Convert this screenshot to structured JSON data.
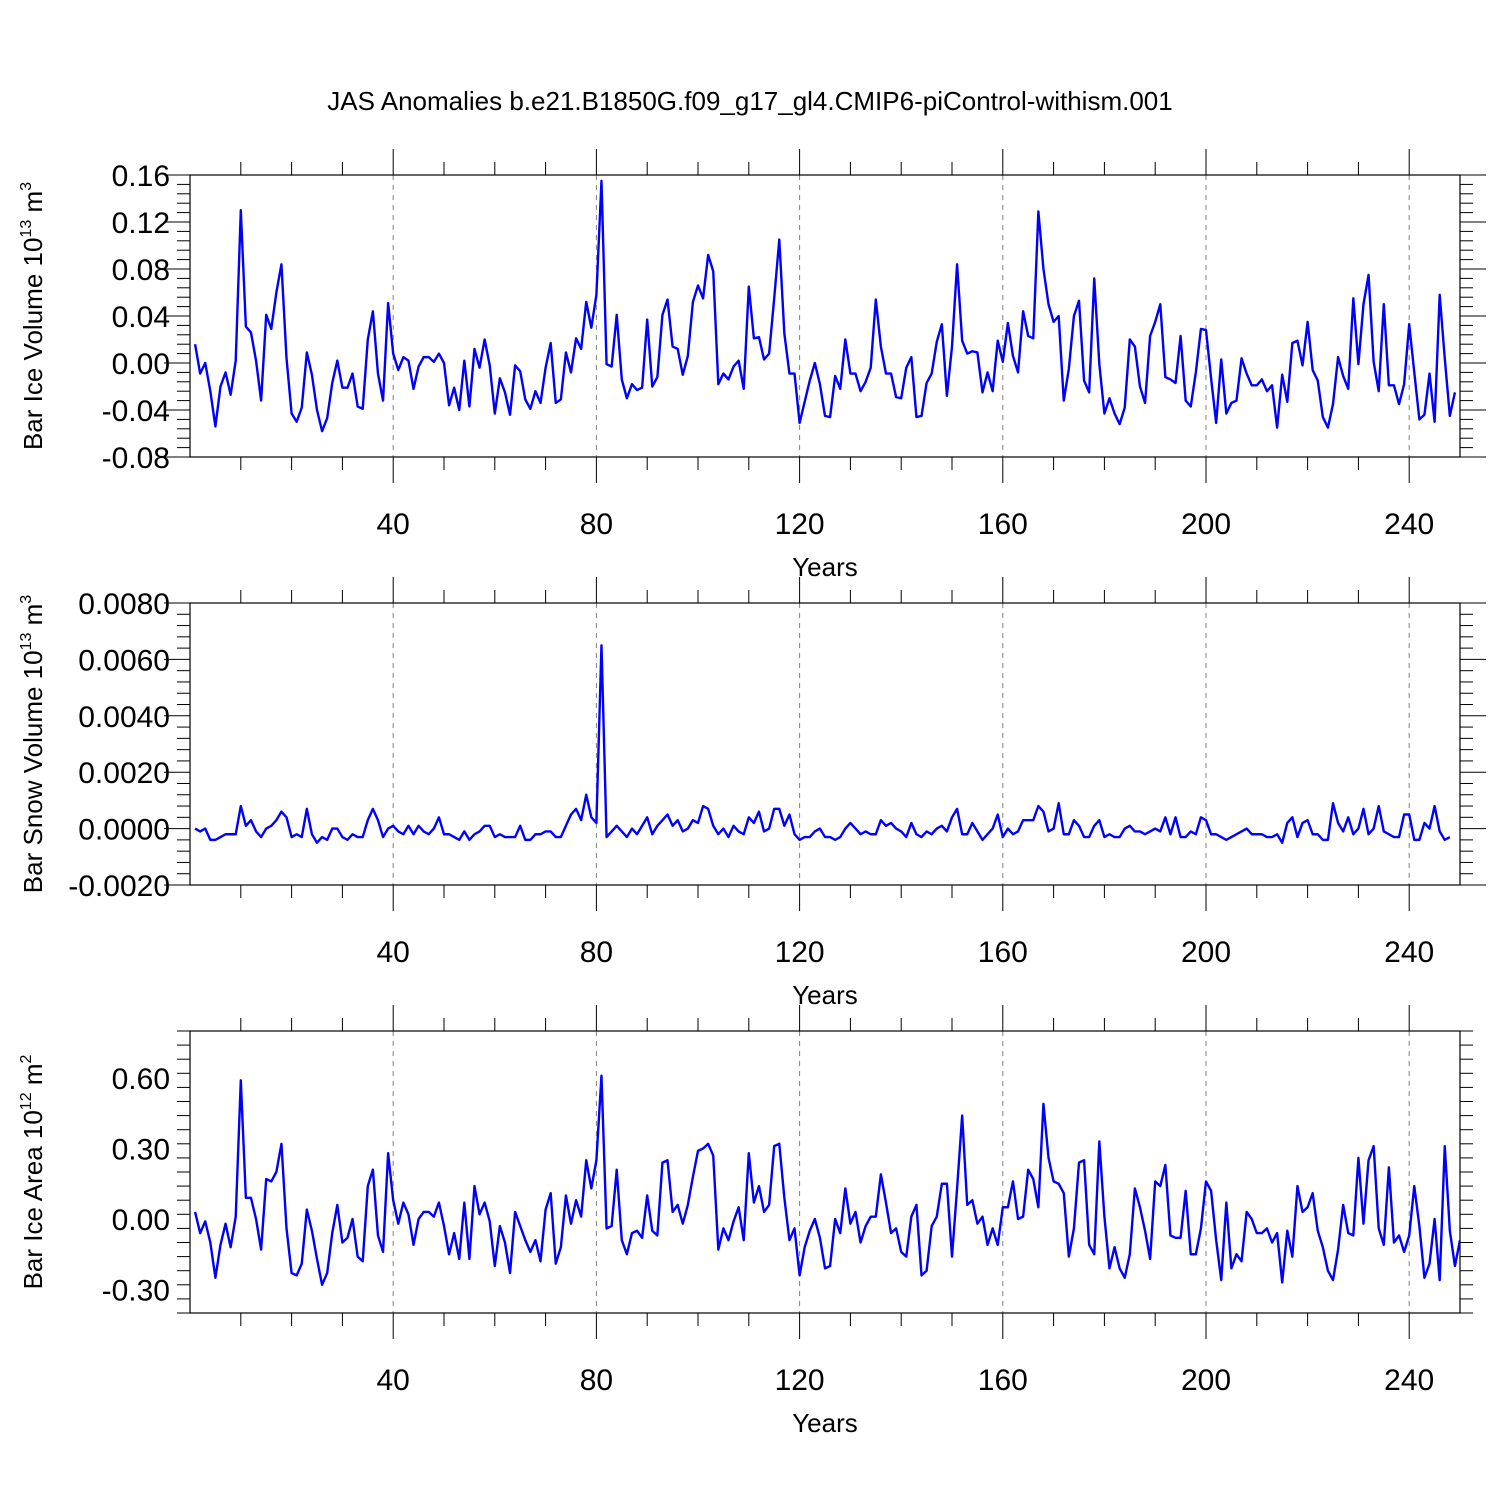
{
  "title": "JAS Anomalies b.e21.B1850G.f09_g17_gl4.CMIP6-piControl-withism.001",
  "colors": {
    "line": "#0000ff",
    "frame": "#000000",
    "grid": "#808080"
  },
  "chart_data": [
    {
      "type": "line",
      "xlabel": "Years",
      "ylabel": {
        "base": "Bar Ice Volume 10",
        "sup1": "13",
        "mid": " m",
        "sup2": "3"
      },
      "xlim": [
        0,
        250
      ],
      "ylim": [
        -0.08,
        0.16
      ],
      "xticks": [
        40,
        80,
        120,
        160,
        200,
        240
      ],
      "xtick_labels": [
        "40",
        "80",
        "120",
        "160",
        "200",
        "240"
      ],
      "yticks": [
        -0.08,
        -0.04,
        0.0,
        0.04,
        0.08,
        0.12,
        0.16
      ],
      "ytick_labels": [
        "-0.08",
        "-0.04",
        "0.00",
        "0.04",
        "0.08",
        "0.12",
        "0.16"
      ],
      "x_start": 1,
      "series": [
        {
          "values": [
            0.016,
            -0.009,
            0.0,
            -0.024,
            -0.054,
            -0.02,
            -0.008,
            -0.027,
            0.002,
            0.13,
            0.031,
            0.026,
            0.002,
            -0.032,
            0.041,
            0.029,
            0.06,
            0.084,
            0.004,
            -0.043,
            -0.05,
            -0.038,
            0.009,
            -0.01,
            -0.04,
            -0.058,
            -0.047,
            -0.017,
            0.002,
            -0.021,
            -0.021,
            -0.009,
            -0.037,
            -0.039,
            0.02,
            0.044,
            -0.009,
            -0.032,
            0.051,
            0.008,
            -0.006,
            0.005,
            0.002,
            -0.022,
            -0.003,
            0.005,
            0.005,
            0.001,
            0.008,
            0.0,
            -0.036,
            -0.021,
            -0.04,
            0.002,
            -0.037,
            0.012,
            -0.004,
            0.02,
            -0.002,
            -0.043,
            -0.013,
            -0.025,
            -0.044,
            -0.002,
            -0.007,
            -0.031,
            -0.039,
            -0.024,
            -0.034,
            -0.004,
            0.017,
            -0.034,
            -0.031,
            0.009,
            -0.008,
            0.021,
            0.012,
            0.052,
            0.03,
            0.058,
            0.155,
            -0.001,
            -0.003,
            0.041,
            -0.014,
            -0.03,
            -0.018,
            -0.023,
            -0.021,
            0.037,
            -0.02,
            -0.012,
            0.041,
            0.054,
            0.014,
            0.012,
            -0.01,
            0.006,
            0.052,
            0.066,
            0.055,
            0.092,
            0.078,
            -0.018,
            -0.009,
            -0.014,
            -0.003,
            0.002,
            -0.022,
            0.065,
            0.021,
            0.022,
            0.003,
            0.008,
            0.055,
            0.105,
            0.025,
            -0.009,
            -0.009,
            -0.051,
            -0.033,
            -0.015,
            0.0,
            -0.018,
            -0.045,
            -0.046,
            -0.011,
            -0.022,
            0.02,
            -0.009,
            -0.009,
            -0.024,
            -0.016,
            -0.004,
            0.054,
            0.014,
            -0.009,
            -0.009,
            -0.029,
            -0.03,
            -0.004,
            0.005,
            -0.046,
            -0.045,
            -0.017,
            -0.009,
            0.018,
            0.033,
            -0.028,
            0.014,
            0.084,
            0.019,
            0.008,
            0.01,
            0.009,
            -0.025,
            -0.008,
            -0.024,
            0.019,
            0.001,
            0.034,
            0.006,
            -0.008,
            0.044,
            0.023,
            0.021,
            0.129,
            0.08,
            0.05,
            0.035,
            0.04,
            -0.032,
            -0.005,
            0.04,
            0.053,
            -0.015,
            -0.025,
            0.072,
            -0.001,
            -0.043,
            -0.03,
            -0.043,
            -0.052,
            -0.038,
            0.02,
            0.014,
            -0.02,
            -0.034,
            0.023,
            0.035,
            0.05,
            -0.012,
            -0.014,
            -0.017,
            0.023,
            -0.032,
            -0.037,
            -0.008,
            0.029,
            0.028,
            -0.013,
            -0.051,
            0.003,
            -0.043,
            -0.034,
            -0.032,
            0.004,
            -0.009,
            -0.019,
            -0.019,
            -0.014,
            -0.024,
            -0.019,
            -0.055,
            -0.01,
            -0.033,
            0.017,
            0.019,
            -0.002,
            0.035,
            -0.006,
            -0.015,
            -0.046,
            -0.055,
            -0.035,
            0.005,
            -0.011,
            -0.022,
            0.055,
            -0.001,
            0.05,
            0.075,
            0.001,
            -0.024,
            0.05,
            -0.019,
            -0.019,
            -0.035,
            -0.018,
            0.033,
            -0.008,
            -0.048,
            -0.044,
            -0.009,
            -0.05,
            0.058,
            0.004,
            -0.045,
            -0.025
          ]
        }
      ]
    },
    {
      "type": "line",
      "xlabel": "Years",
      "ylabel": {
        "base": "Bar Snow Volume 10",
        "sup1": "13",
        "mid": " m",
        "sup2": "3"
      },
      "xlim": [
        0,
        250
      ],
      "ylim": [
        -0.002,
        0.008
      ],
      "xticks": [
        40,
        80,
        120,
        160,
        200,
        240
      ],
      "xtick_labels": [
        "40",
        "80",
        "120",
        "160",
        "200",
        "240"
      ],
      "yticks": [
        -0.002,
        0.0,
        0.002,
        0.004,
        0.006,
        0.008
      ],
      "ytick_labels": [
        "-0.0020",
        "0.0000",
        "0.0020",
        "0.0040",
        "0.0060",
        "0.0080"
      ],
      "x_start": 1,
      "series": [
        {
          "values": [
            0.0,
            -0.0001,
            0.0,
            -0.0004,
            -0.0004,
            -0.0003,
            -0.0002,
            -0.0002,
            -0.0002,
            0.0008,
            0.0001,
            0.0003,
            -0.0001,
            -0.0003,
            0.0,
            0.0001,
            0.0003,
            0.0006,
            0.0004,
            -0.0003,
            -0.0002,
            -0.0003,
            0.0007,
            -0.0002,
            -0.0005,
            -0.0003,
            -0.0004,
            0.0,
            0.0,
            -0.0003,
            -0.0004,
            -0.0002,
            -0.0003,
            -0.0003,
            0.0003,
            0.0007,
            0.0003,
            -0.0003,
            0.0,
            0.0001,
            -0.0001,
            -0.0002,
            0.0001,
            -0.0002,
            0.0001,
            -0.0001,
            -0.0002,
            0.0,
            0.0004,
            -0.0002,
            -0.0002,
            -0.0003,
            -0.0004,
            -0.0001,
            -0.0004,
            -0.0002,
            -0.0001,
            0.0001,
            0.0001,
            -0.0003,
            -0.0002,
            -0.0003,
            -0.0003,
            -0.0003,
            0.0001,
            -0.0004,
            -0.0004,
            -0.0002,
            -0.0002,
            -0.0001,
            -0.0001,
            -0.0003,
            -0.0003,
            0.0001,
            0.0005,
            0.0007,
            0.0003,
            0.0012,
            0.0004,
            0.0002,
            0.0065,
            -0.0003,
            -0.0001,
            0.0001,
            -0.0001,
            -0.0003,
            0.0,
            -0.0002,
            0.0001,
            0.0004,
            -0.0002,
            0.0001,
            0.0003,
            0.0005,
            0.0001,
            0.0003,
            -0.0001,
            0.0,
            0.0003,
            0.0002,
            0.0008,
            0.0007,
            0.0001,
            -0.0002,
            0.0,
            -0.0003,
            0.0001,
            -0.0001,
            -0.0002,
            0.0004,
            0.0002,
            0.0006,
            -0.0001,
            0.0,
            0.0007,
            0.0007,
            0.0001,
            0.0005,
            -0.0002,
            -0.0004,
            -0.0003,
            -0.0003,
            -0.0001,
            0.0,
            -0.0003,
            -0.0003,
            -0.0004,
            -0.0003,
            0.0,
            0.0002,
            0.0,
            -0.0002,
            -0.0001,
            -0.0002,
            -0.0002,
            0.0003,
            0.0001,
            0.0002,
            0.0,
            -0.0001,
            -0.0003,
            0.0002,
            -0.0002,
            -0.0003,
            -0.0001,
            -0.0002,
            0.0,
            0.0001,
            -0.0001,
            0.0004,
            0.0007,
            -0.0002,
            -0.0002,
            0.0002,
            -0.0001,
            -0.0004,
            -0.0002,
            0.0,
            0.0005,
            -0.0003,
            0.0,
            -0.0002,
            -0.0001,
            0.0003,
            0.0003,
            0.0003,
            0.0008,
            0.0006,
            -0.0001,
            0.0,
            0.0009,
            -0.0002,
            -0.0002,
            0.0003,
            0.0001,
            -0.0003,
            -0.0003,
            0.0001,
            0.0003,
            -0.0003,
            -0.0002,
            -0.0003,
            -0.0003,
            0.0,
            0.0001,
            -0.0001,
            -0.0001,
            -0.0002,
            -0.0001,
            0.0,
            -0.0001,
            0.0004,
            -0.0002,
            0.0004,
            -0.0003,
            -0.0003,
            -0.0001,
            -0.0002,
            0.0004,
            0.0003,
            -0.0002,
            -0.0002,
            -0.0003,
            -0.0004,
            -0.0003,
            -0.0002,
            -0.0001,
            0.0,
            -0.0002,
            -0.0002,
            -0.0002,
            -0.0003,
            -0.0003,
            -0.0002,
            -0.0005,
            0.0002,
            0.0004,
            -0.0003,
            0.0002,
            0.0003,
            -0.0002,
            -0.0002,
            -0.0004,
            -0.0004,
            0.0009,
            0.0002,
            -0.0001,
            0.0004,
            -0.0002,
            0.0,
            0.0007,
            -0.0002,
            0.0,
            0.0008,
            -0.0001,
            -0.0002,
            -0.0003,
            -0.0003,
            0.0005,
            0.0005,
            -0.0004,
            -0.0004,
            0.0002,
            0.0,
            0.0008,
            -0.0001,
            -0.0004,
            -0.0003
          ]
        }
      ]
    },
    {
      "type": "line",
      "xlabel": "Years",
      "ylabel": {
        "base": "Bar Ice Area 10",
        "sup1": "12",
        "mid": " m",
        "sup2": "2"
      },
      "xlim": [
        0,
        250
      ],
      "ylim": [
        -0.4,
        0.8
      ],
      "xticks": [
        40,
        80,
        120,
        160,
        200,
        240
      ],
      "xtick_labels": [
        "40",
        "80",
        "120",
        "160",
        "200",
        "240"
      ],
      "yticks": [
        -0.3,
        0.0,
        0.3,
        0.6
      ],
      "ytick_labels": [
        "-0.30",
        "0.00",
        "0.30",
        "0.60"
      ],
      "x_start": 1,
      "series": [
        {
          "values": [
            0.03,
            -0.06,
            -0.01,
            -0.1,
            -0.25,
            -0.11,
            -0.02,
            -0.12,
            0.01,
            0.59,
            0.09,
            0.09,
            0.0,
            -0.13,
            0.17,
            0.16,
            0.2,
            0.32,
            -0.04,
            -0.23,
            -0.24,
            -0.19,
            0.04,
            -0.05,
            -0.17,
            -0.28,
            -0.23,
            -0.06,
            0.06,
            -0.1,
            -0.08,
            0.0,
            -0.16,
            -0.18,
            0.14,
            0.21,
            -0.07,
            -0.14,
            0.28,
            0.08,
            -0.02,
            0.07,
            0.02,
            -0.11,
            0.0,
            0.03,
            0.03,
            0.01,
            0.07,
            -0.03,
            -0.15,
            -0.06,
            -0.17,
            0.07,
            -0.17,
            0.14,
            0.02,
            0.07,
            -0.01,
            -0.2,
            -0.03,
            -0.1,
            -0.23,
            0.03,
            -0.03,
            -0.09,
            -0.14,
            -0.09,
            -0.18,
            0.04,
            0.11,
            -0.19,
            -0.12,
            0.1,
            -0.02,
            0.08,
            0.01,
            0.25,
            0.13,
            0.25,
            0.61,
            -0.04,
            -0.03,
            0.21,
            -0.09,
            -0.15,
            -0.06,
            -0.05,
            -0.08,
            0.1,
            -0.05,
            -0.07,
            0.24,
            0.25,
            0.03,
            0.06,
            -0.02,
            0.06,
            0.18,
            0.29,
            0.3,
            0.32,
            0.27,
            -0.13,
            -0.04,
            -0.09,
            -0.01,
            0.05,
            -0.09,
            0.28,
            0.07,
            0.14,
            0.03,
            0.06,
            0.31,
            0.32,
            0.09,
            -0.09,
            -0.04,
            -0.24,
            -0.12,
            -0.05,
            0.0,
            -0.08,
            -0.21,
            -0.2,
            0.0,
            -0.06,
            0.13,
            -0.02,
            0.03,
            -0.1,
            -0.03,
            0.01,
            0.01,
            0.19,
            0.07,
            -0.06,
            -0.04,
            -0.14,
            -0.16,
            0.01,
            0.06,
            -0.24,
            -0.22,
            -0.03,
            0.01,
            0.15,
            0.15,
            -0.16,
            0.13,
            0.44,
            0.06,
            0.08,
            -0.02,
            0.01,
            -0.11,
            -0.04,
            -0.11,
            0.05,
            0.05,
            0.16,
            0.0,
            0.01,
            0.21,
            0.17,
            0.05,
            0.49,
            0.26,
            0.16,
            0.15,
            0.11,
            -0.16,
            -0.04,
            0.24,
            0.25,
            -0.11,
            -0.15,
            0.33,
            0.01,
            -0.21,
            -0.12,
            -0.21,
            -0.25,
            -0.15,
            0.13,
            0.05,
            -0.05,
            -0.17,
            0.16,
            0.14,
            0.23,
            -0.07,
            -0.08,
            -0.08,
            0.12,
            -0.15,
            -0.15,
            -0.04,
            0.16,
            0.12,
            -0.09,
            -0.26,
            0.07,
            -0.21,
            -0.15,
            -0.18,
            0.03,
            0.0,
            -0.06,
            -0.06,
            -0.04,
            -0.1,
            -0.06,
            -0.27,
            -0.05,
            -0.16,
            0.14,
            0.03,
            0.05,
            0.11,
            -0.05,
            -0.12,
            -0.22,
            -0.26,
            -0.13,
            0.06,
            -0.06,
            -0.07,
            0.26,
            -0.02,
            0.25,
            0.31,
            -0.04,
            -0.11,
            0.22,
            -0.1,
            -0.07,
            -0.14,
            -0.07,
            0.14,
            -0.03,
            -0.25,
            -0.19,
            0.0,
            -0.26,
            0.31,
            -0.05,
            -0.2,
            -0.09
          ]
        }
      ]
    }
  ]
}
